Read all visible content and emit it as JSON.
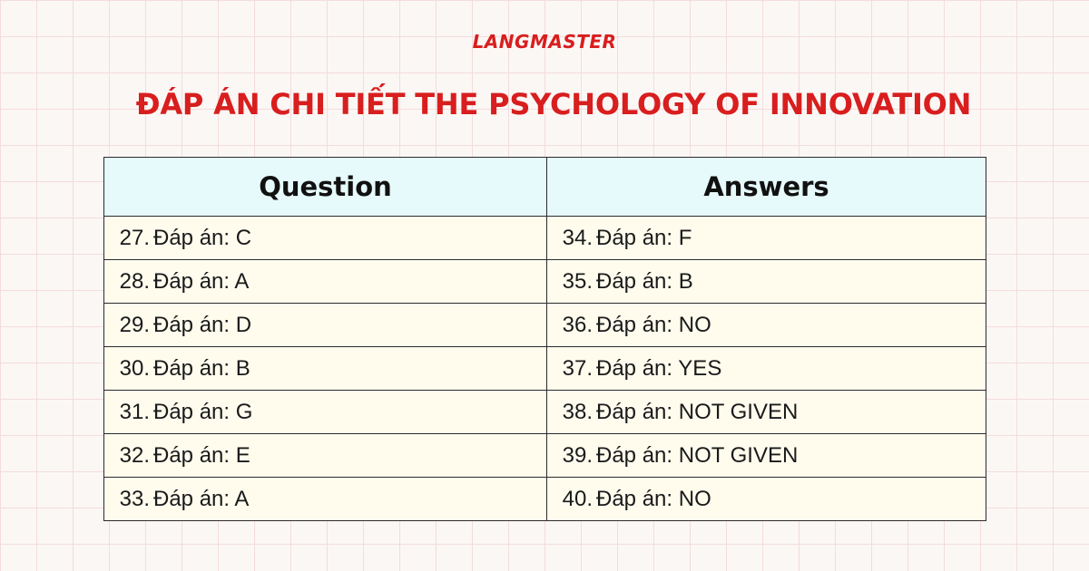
{
  "brand": "LANGMASTER",
  "title": "ĐÁP ÁN CHI TIẾT THE PSYCHOLOGY OF INNOVATION",
  "table": {
    "headers": [
      "Question",
      "Answers"
    ],
    "answer_prefix": "Đáp án:",
    "left": [
      {
        "num": "27.",
        "answer": "C"
      },
      {
        "num": "28.",
        "answer": "A"
      },
      {
        "num": "29.",
        "answer": "D"
      },
      {
        "num": "30.",
        "answer": "B"
      },
      {
        "num": "31.",
        "answer": "G"
      },
      {
        "num": "32.",
        "answer": "E"
      },
      {
        "num": "33.",
        "answer": "A"
      }
    ],
    "right": [
      {
        "num": "34.",
        "answer": "F"
      },
      {
        "num": "35.",
        "answer": "B"
      },
      {
        "num": "36.",
        "answer": "NO"
      },
      {
        "num": "37.",
        "answer": "YES"
      },
      {
        "num": "38.",
        "answer": "NOT GIVEN"
      },
      {
        "num": "39.",
        "answer": "NOT GIVEN"
      },
      {
        "num": "40.",
        "answer": "NO"
      }
    ]
  },
  "colors": {
    "accent": "#d81e1e",
    "header_bg": "#e6f9fb",
    "cell_bg": "#fffcee"
  }
}
